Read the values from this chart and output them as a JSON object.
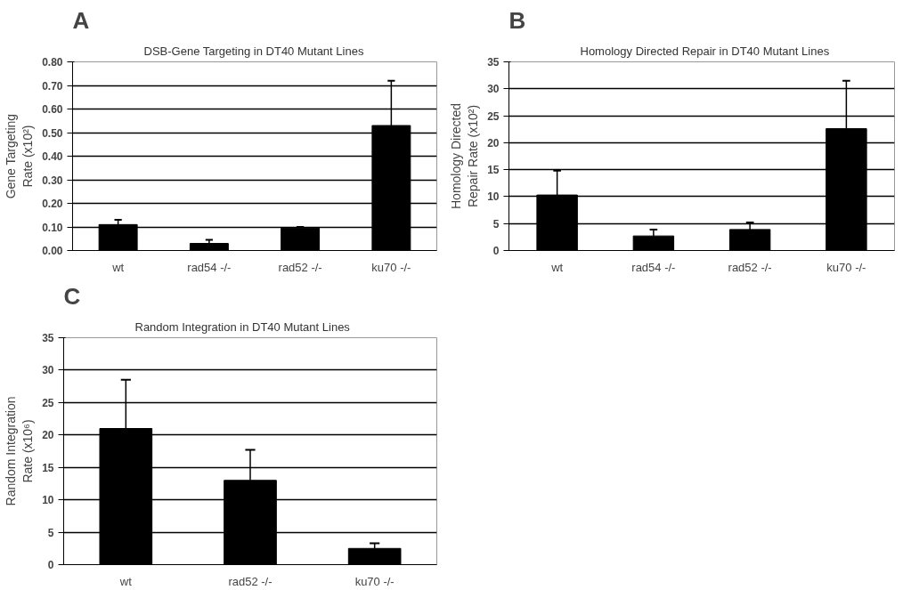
{
  "chart_data": [
    {
      "type": "bar",
      "title": "DSB-Gene Targeting in DT40 Mutant Lines",
      "ylabel": "Gene Targeting Rate (x10²)",
      "annotations": [
        "A"
      ],
      "categories": [
        "wt",
        "rad54 -/-",
        "rad52 -/-",
        "ku70 -/-"
      ],
      "values": [
        0.11,
        0.03,
        0.095,
        0.53
      ],
      "errors": [
        [
          0.11,
          0.13
        ],
        [
          0.03,
          0.045
        ],
        [
          0.095,
          0.1
        ],
        [
          0.53,
          0.72
        ]
      ],
      "color": "#000000",
      "ylim": [
        0,
        0.8
      ],
      "yticks": [
        {
          "value": 0,
          "label": "0.00"
        },
        {
          "value": 0.1,
          "label": "0.10"
        },
        {
          "value": 0.2,
          "label": "0.20"
        },
        {
          "value": 0.3,
          "label": "0.30"
        },
        {
          "value": 0.4,
          "label": "0.40"
        },
        {
          "value": 0.5,
          "label": "0.50"
        },
        {
          "value": 0.6,
          "label": "0.60"
        },
        {
          "value": 0.7,
          "label": "0.70"
        },
        {
          "value": 0.8,
          "label": "0.80"
        }
      ],
      "grid": "y"
    },
    {
      "type": "bar",
      "title": "Homology Directed Repair in DT40 Mutant Lines",
      "ylabel": "Homology Directed Repair Rate (x10²)",
      "annotations": [
        "B"
      ],
      "categories": [
        "wt",
        "rad54 -/-",
        "rad52 -/-",
        "ku70 -/-"
      ],
      "values": [
        10.3,
        2.7,
        3.9,
        22.6
      ],
      "errors": [
        [
          10.3,
          14.8
        ],
        [
          2.7,
          3.9
        ],
        [
          3.9,
          5.2
        ],
        [
          22.6,
          31.5
        ]
      ],
      "color": "#000000",
      "ylim": [
        0,
        35
      ],
      "yticks": [
        0,
        5,
        10,
        15,
        20,
        25,
        30,
        35
      ],
      "grid": "y"
    },
    {
      "type": "bar",
      "title": "Random Integration in DT40 Mutant Lines",
      "ylabel": "Random Integration Rate (x10⁶)",
      "annotations": [
        "C"
      ],
      "categories": [
        "wt",
        "rad52 -/-",
        "ku70 -/-"
      ],
      "values": [
        21,
        13,
        2.5
      ],
      "errors": [
        [
          21,
          28.5
        ],
        [
          13,
          17.7
        ],
        [
          2.5,
          3.3
        ]
      ],
      "color": "#000000",
      "ylim": [
        0,
        35
      ],
      "yticks": [
        0,
        5,
        10,
        15,
        20,
        25,
        30,
        35
      ],
      "grid": "y"
    }
  ]
}
